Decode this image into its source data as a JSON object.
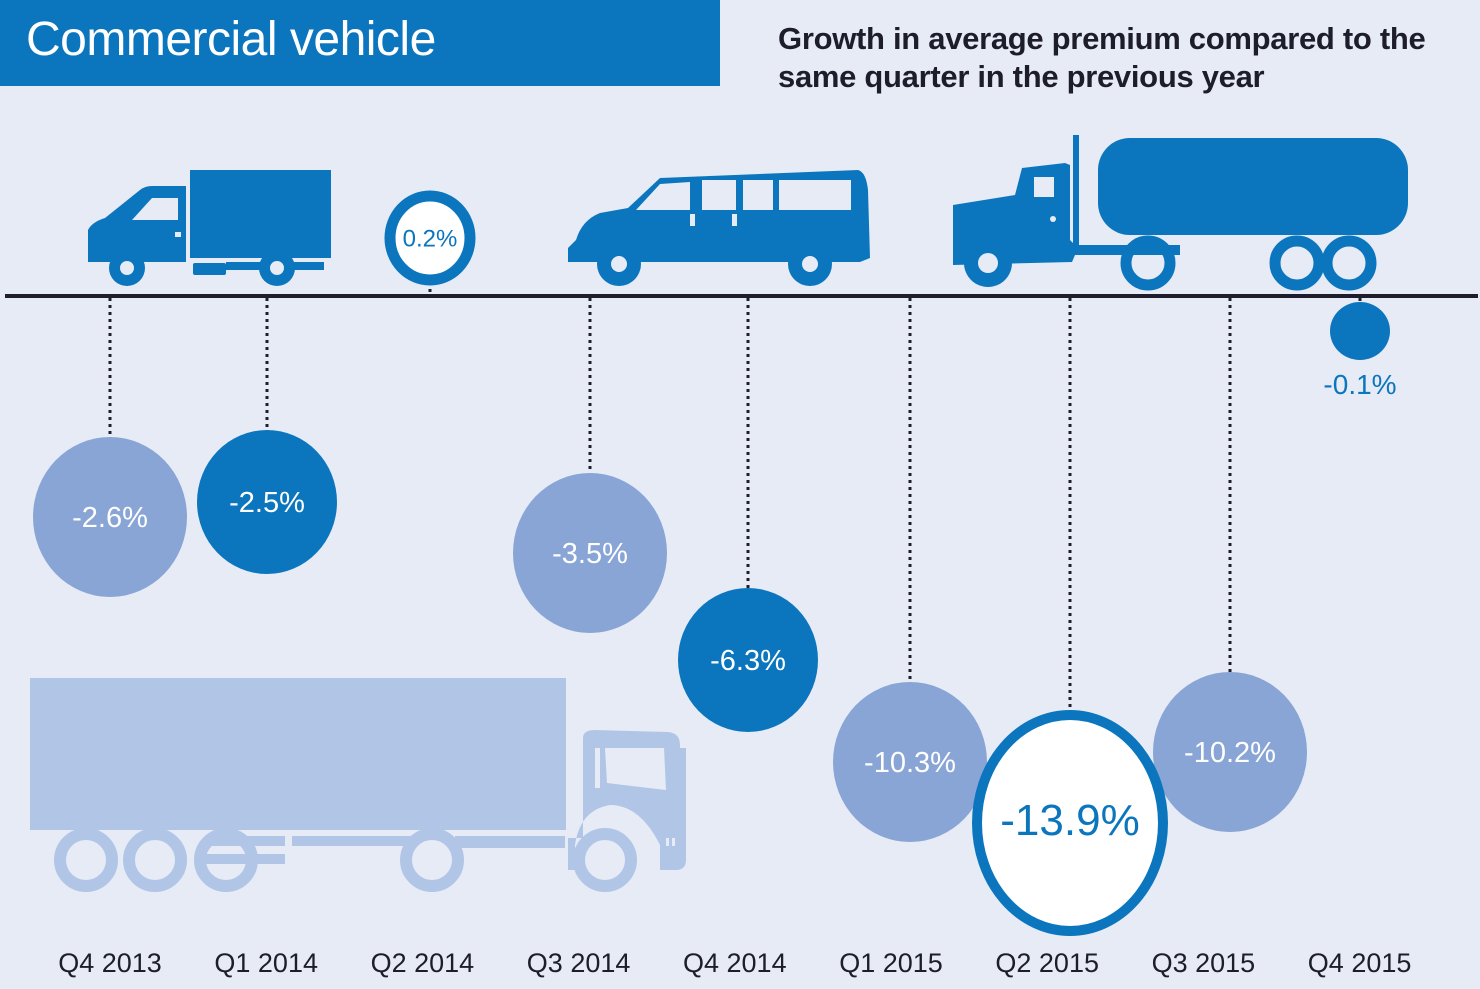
{
  "header": {
    "title": "Commercial vehicle",
    "subtitle": "Growth in average premium compared to the same quarter in the previous year"
  },
  "colors": {
    "background": "#e6ebf6",
    "title_bar": "#0b76bd",
    "dark_blue": "#0b76bd",
    "light_blue": "#88a5d6",
    "faded_truck": "#b1c6e6",
    "axis": "#1d1d2b"
  },
  "icons": [
    "box-truck-icon",
    "van-icon",
    "tanker-truck-icon",
    "lorry-truck-icon"
  ],
  "chart_data": {
    "type": "bubble",
    "title": "Growth in average premium compared to the same quarter in the previous year",
    "xlabel": "",
    "ylabel": "Growth in average premium (%)",
    "categories": [
      "Q4 2013",
      "Q1 2014",
      "Q2 2014",
      "Q3 2014",
      "Q4 2014",
      "Q1 2015",
      "Q2 2015",
      "Q3 2015",
      "Q4 2015"
    ],
    "values": [
      -2.6,
      -2.5,
      0.2,
      -3.5,
      -6.3,
      -10.3,
      -13.9,
      -10.2,
      -0.1
    ],
    "labels": [
      "-2.6%",
      "-2.5%",
      "0.2%",
      "-3.5%",
      "-6.3%",
      "-10.3%",
      "-13.9%",
      "-10.2%",
      "-0.1%"
    ],
    "styles": [
      "light",
      "dark",
      "ring",
      "light",
      "dark",
      "light",
      "highlight",
      "light",
      "dark-small"
    ],
    "baseline": 0,
    "grid": false,
    "legend": "none"
  }
}
